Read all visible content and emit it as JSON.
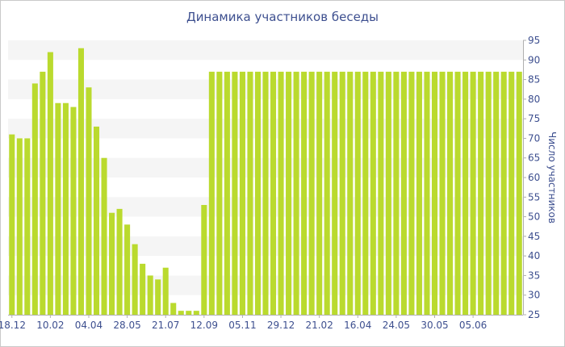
{
  "chart_data": {
    "type": "bar",
    "title": "Динамика участников беседы",
    "ylabel": "Число участников",
    "xlabel": "",
    "ylim": [
      25,
      95
    ],
    "yticks": [
      25,
      30,
      35,
      40,
      45,
      50,
      55,
      60,
      65,
      70,
      75,
      80,
      85,
      90,
      95
    ],
    "xtick_labels": [
      {
        "index": 0,
        "label": "18.12"
      },
      {
        "index": 5,
        "label": "10.02"
      },
      {
        "index": 10,
        "label": "04.04"
      },
      {
        "index": 15,
        "label": "28.05"
      },
      {
        "index": 20,
        "label": "21.07"
      },
      {
        "index": 25,
        "label": "12.09"
      },
      {
        "index": 30,
        "label": "05.11"
      },
      {
        "index": 35,
        "label": "29.12"
      },
      {
        "index": 40,
        "label": "21.02"
      },
      {
        "index": 45,
        "label": "16.04"
      },
      {
        "index": 50,
        "label": "24.05"
      },
      {
        "index": 55,
        "label": "30.05"
      },
      {
        "index": 60,
        "label": "05.06"
      }
    ],
    "values": [
      71,
      70,
      70,
      84,
      87,
      92,
      79,
      79,
      78,
      93,
      83,
      73,
      65,
      51,
      52,
      48,
      43,
      38,
      35,
      34,
      37,
      28,
      26,
      26,
      26,
      53,
      87,
      87,
      87,
      87,
      87,
      87,
      87,
      87,
      87,
      87,
      87,
      87,
      87,
      87,
      87,
      87,
      87,
      87,
      87,
      87,
      87,
      87,
      87,
      87,
      87,
      87,
      87,
      87,
      87,
      87,
      87,
      87,
      87,
      87,
      87,
      87,
      87,
      87,
      87,
      87,
      87
    ],
    "grid": "alternating horizontal bands",
    "colors": {
      "bar": "#bada2e",
      "band": "#f5f5f5",
      "text": "#3d4f8f",
      "axis": "#b0b0b0"
    }
  }
}
